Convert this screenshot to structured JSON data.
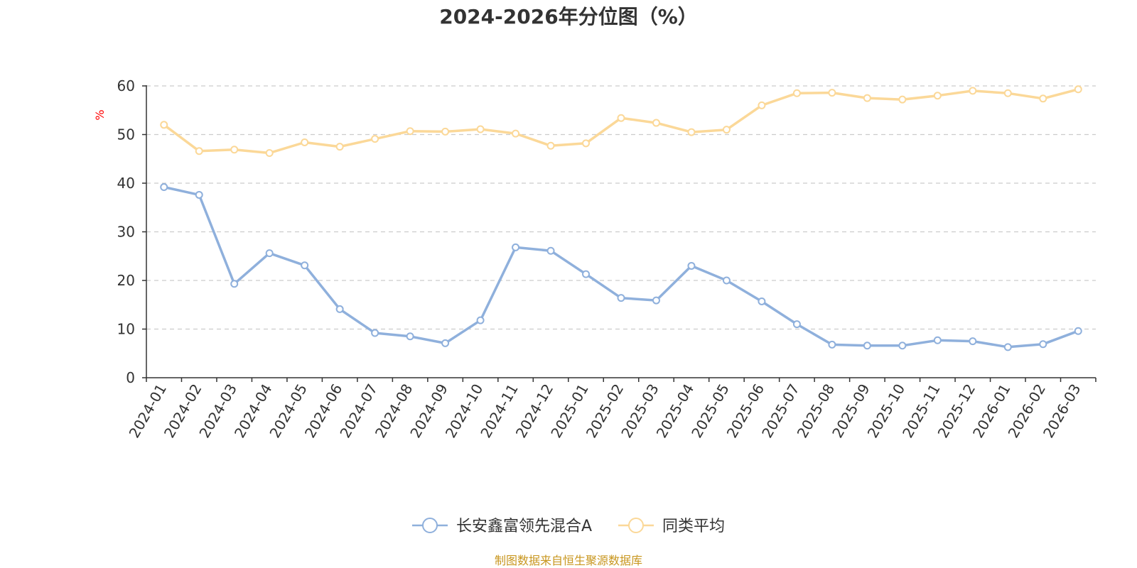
{
  "chart_data": {
    "type": "line",
    "title": "2024-2026年分位图（%）",
    "ylabel": "%",
    "xlabel": "",
    "ylim": [
      0,
      60
    ],
    "yticks": [
      0,
      10,
      20,
      30,
      40,
      50,
      60
    ],
    "grid": true,
    "legend_position": "bottom",
    "categories": [
      "2024-01",
      "2024-02",
      "2024-03",
      "2024-04",
      "2024-05",
      "2024-06",
      "2024-07",
      "2024-08",
      "2024-09",
      "2024-10",
      "2024-11",
      "2024-12",
      "2025-01",
      "2025-02",
      "2025-03",
      "2025-04",
      "2025-05",
      "2025-06",
      "2025-07",
      "2025-08",
      "2025-09",
      "2025-10",
      "2025-11",
      "2025-12",
      "2026-01",
      "2026-02",
      "2026-03"
    ],
    "series": [
      {
        "name": "长安鑫富领先混合A",
        "color": "#8fb0dc",
        "values": [
          39.2,
          37.6,
          19.3,
          25.6,
          23.1,
          14.1,
          9.2,
          8.5,
          7.1,
          11.8,
          26.8,
          26.1,
          21.3,
          16.4,
          15.9,
          23.0,
          20.0,
          15.7,
          11.0,
          6.8,
          6.6,
          6.6,
          7.7,
          7.5,
          6.3,
          6.9,
          9.6
        ]
      },
      {
        "name": "同类平均",
        "color": "#fbd898",
        "values": [
          52.0,
          46.6,
          46.9,
          46.2,
          48.4,
          47.5,
          49.1,
          50.7,
          50.6,
          51.1,
          50.2,
          47.7,
          48.2,
          53.4,
          52.4,
          50.5,
          51.0,
          56.0,
          58.5,
          58.6,
          57.5,
          57.2,
          58.0,
          59.0,
          58.5,
          57.4,
          59.3
        ]
      }
    ]
  },
  "colors": {
    "axis": "#333333",
    "grid": "#cccccc",
    "unit_label": "#ff0000",
    "source_text": "#c8961e"
  },
  "source_note": "制图数据来自恒生聚源数据库"
}
